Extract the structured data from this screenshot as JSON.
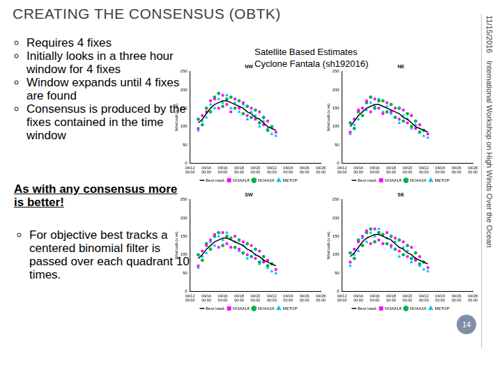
{
  "slide": {
    "title": "CREATING THE CONSENSUS (OBTK)",
    "date": "11/15/2016",
    "footer": "International Workshop on High Winds Over the Ocean",
    "page": 14,
    "bullets": [
      "Requires 4 fixes",
      "Initially looks in a three hour window for 4 fixes",
      "Window expands until 4 fixes are found",
      "Consensus is produced by the fixes contained in the time window"
    ],
    "emphasis": "As with any consensus more is better!",
    "note": "For objective best tracks a centered binomial filter is passed over each quadrant 10 times.",
    "chart_header": [
      "Satellite Based Estimates",
      "Cyclone Fantala (sh192016)"
    ]
  },
  "chart_data": [
    {
      "type": "scatter",
      "title": "NW",
      "ylabel": "Wind radii (n mi)",
      "categories": [
        "04/12 00:00",
        null,
        null,
        null,
        "04/14 00:00",
        null,
        null,
        null,
        "04/16 00:00",
        null,
        null,
        null,
        "04/18 00:00",
        null,
        null,
        null,
        "04/20 00:00",
        null,
        null,
        null,
        "04/22 00:00",
        null,
        null,
        null,
        "04/24 00:00",
        null,
        null,
        null,
        "04/26 00:00",
        null,
        null,
        null,
        "04/28 00:00"
      ],
      "ylim": [
        0,
        250
      ],
      "yticks": [
        0,
        50,
        100,
        150,
        200,
        250
      ],
      "grid": false,
      "legend": "bottom",
      "series": [
        {
          "name": "Best track",
          "color": "#000000",
          "type": "line",
          "line_style": "solid",
          "values": [
            null,
            null,
            110,
            120,
            135,
            150,
            160,
            165,
            170,
            170,
            165,
            160,
            155,
            150,
            140,
            135,
            125,
            120,
            110,
            100,
            95,
            90,
            null,
            null,
            null,
            null,
            null,
            null,
            null,
            null,
            null,
            null,
            null
          ]
        },
        {
          "name": "NOAA18",
          "color": "#ff00ff",
          "type": "scatter",
          "marker": "square",
          "values": [
            null,
            null,
            95,
            130,
            140,
            170,
            175,
            150,
            185,
            160,
            140,
            175,
            150,
            165,
            130,
            150,
            120,
            140,
            105,
            115,
            null,
            85,
            null,
            null,
            null,
            null,
            null,
            null,
            null,
            null,
            null,
            null,
            null
          ]
        },
        {
          "name": "NOAA19",
          "color": "#00b050",
          "type": "scatter",
          "marker": "circle",
          "values": [
            null,
            null,
            120,
            105,
            150,
            140,
            180,
            190,
            155,
            175,
            180,
            150,
            170,
            135,
            155,
            125,
            145,
            110,
            125,
            90,
            100,
            null,
            null,
            null,
            null,
            null,
            null,
            null,
            null,
            null,
            null,
            null,
            null
          ]
        },
        {
          "name": "METOP",
          "color": "#00bfff",
          "type": "scatter",
          "marker": "triangle",
          "values": [
            null,
            null,
            90,
            115,
            125,
            160,
            150,
            175,
            165,
            185,
            150,
            165,
            140,
            160,
            120,
            140,
            130,
            100,
            115,
            95,
            80,
            75,
            null,
            null,
            null,
            null,
            null,
            null,
            null,
            null,
            null,
            null,
            null
          ]
        }
      ]
    },
    {
      "type": "scatter",
      "title": "NE",
      "ylabel": "Wind radii (n mi)",
      "categories": [
        "04/12 00:00",
        null,
        null,
        null,
        "04/14 00:00",
        null,
        null,
        null,
        "04/16 00:00",
        null,
        null,
        null,
        "04/18 00:00",
        null,
        null,
        null,
        "04/20 00:00",
        null,
        null,
        null,
        "04/22 00:00",
        null,
        null,
        null,
        "04/24 00:00",
        null,
        null,
        null,
        "04/26 00:00",
        null,
        null,
        null,
        "04/28 00:00"
      ],
      "ylim": [
        0,
        250
      ],
      "yticks": [
        0,
        50,
        100,
        150,
        200,
        250
      ],
      "grid": false,
      "legend": "bottom",
      "series": [
        {
          "name": "Best track",
          "color": "#000000",
          "type": "line",
          "line_style": "solid",
          "values": [
            null,
            null,
            100,
            115,
            130,
            140,
            150,
            155,
            160,
            160,
            155,
            150,
            145,
            140,
            135,
            125,
            120,
            110,
            100,
            95,
            90,
            85,
            null,
            null,
            null,
            null,
            null,
            null,
            null,
            null,
            null,
            null,
            null
          ]
        },
        {
          "name": "NOAA18",
          "color": "#ff00ff",
          "type": "scatter",
          "marker": "square",
          "values": [
            null,
            null,
            85,
            120,
            145,
            150,
            170,
            140,
            175,
            150,
            135,
            165,
            140,
            150,
            120,
            145,
            110,
            130,
            95,
            105,
            null,
            80,
            null,
            null,
            null,
            null,
            null,
            null,
            null,
            null,
            null,
            null,
            null
          ]
        },
        {
          "name": "NOAA19",
          "color": "#00b050",
          "type": "scatter",
          "marker": "circle",
          "values": [
            null,
            null,
            110,
            95,
            140,
            130,
            165,
            180,
            150,
            170,
            170,
            140,
            160,
            125,
            150,
            115,
            135,
            100,
            115,
            85,
            90,
            null,
            null,
            null,
            null,
            null,
            null,
            null,
            null,
            null,
            null,
            null,
            null
          ]
        },
        {
          "name": "METOP",
          "color": "#00bfff",
          "type": "scatter",
          "marker": "triangle",
          "values": [
            null,
            null,
            80,
            105,
            120,
            150,
            145,
            165,
            155,
            175,
            140,
            155,
            135,
            150,
            110,
            130,
            120,
            95,
            105,
            85,
            75,
            70,
            null,
            null,
            null,
            null,
            null,
            null,
            null,
            null,
            null,
            null,
            null
          ]
        }
      ]
    },
    {
      "type": "scatter",
      "title": "SW",
      "ylabel": "Wind radii (n mi)",
      "categories": [
        "04/12 00:00",
        null,
        null,
        null,
        "04/14 00:00",
        null,
        null,
        null,
        "04/16 00:00",
        null,
        null,
        null,
        "04/18 00:00",
        null,
        null,
        null,
        "04/20 00:00",
        null,
        null,
        null,
        "04/22 00:00",
        null,
        null,
        null,
        "04/24 00:00",
        null,
        null,
        null,
        "04/26 00:00",
        null,
        null,
        null,
        "04/28 00:00"
      ],
      "ylim": [
        0,
        250
      ],
      "yticks": [
        0,
        50,
        100,
        150,
        200,
        250
      ],
      "grid": false,
      "legend": "bottom",
      "series": [
        {
          "name": "Best track",
          "color": "#000000",
          "type": "line",
          "line_style": "solid",
          "values": [
            null,
            null,
            90,
            100,
            115,
            125,
            135,
            140,
            145,
            145,
            140,
            135,
            130,
            125,
            115,
            110,
            100,
            95,
            85,
            80,
            75,
            70,
            null,
            null,
            null,
            null,
            null,
            null,
            null,
            null,
            null,
            null,
            null
          ]
        },
        {
          "name": "NOAA18",
          "color": "#ff00ff",
          "type": "scatter",
          "marker": "square",
          "values": [
            null,
            null,
            70,
            110,
            125,
            140,
            155,
            120,
            160,
            130,
            120,
            150,
            115,
            135,
            100,
            125,
            90,
            110,
            80,
            85,
            null,
            60,
            null,
            null,
            null,
            null,
            null,
            null,
            null,
            null,
            null,
            null,
            null
          ]
        },
        {
          "name": "NOAA19",
          "color": "#00b050",
          "type": "scatter",
          "marker": "circle",
          "values": [
            null,
            null,
            100,
            85,
            130,
            115,
            150,
            160,
            125,
            150,
            145,
            120,
            140,
            105,
            130,
            95,
            115,
            80,
            95,
            70,
            75,
            null,
            null,
            null,
            null,
            null,
            null,
            null,
            null,
            null,
            null,
            null,
            null
          ]
        },
        {
          "name": "METOP",
          "color": "#00bfff",
          "type": "scatter",
          "marker": "triangle",
          "values": [
            null,
            null,
            65,
            95,
            105,
            135,
            125,
            150,
            140,
            160,
            120,
            135,
            110,
            125,
            90,
            110,
            100,
            75,
            85,
            65,
            55,
            50,
            null,
            null,
            null,
            null,
            null,
            null,
            null,
            null,
            null,
            null,
            null
          ]
        }
      ]
    },
    {
      "type": "scatter",
      "title": "SE",
      "ylabel": "Wind radii (n mi)",
      "categories": [
        "04/12 00:00",
        null,
        null,
        null,
        "04/14 00:00",
        null,
        null,
        null,
        "04/16 00:00",
        null,
        null,
        null,
        "04/18 00:00",
        null,
        null,
        null,
        "04/20 00:00",
        null,
        null,
        null,
        "04/22 00:00",
        null,
        null,
        null,
        "04/24 00:00",
        null,
        null,
        null,
        "04/26 00:00",
        null,
        null,
        null,
        "04/28 00:00"
      ],
      "ylim": [
        0,
        250
      ],
      "yticks": [
        0,
        50,
        100,
        150,
        200,
        250
      ],
      "grid": false,
      "legend": "bottom",
      "series": [
        {
          "name": "Best track",
          "color": "#000000",
          "type": "line",
          "line_style": "solid",
          "values": [
            null,
            null,
            95,
            105,
            120,
            135,
            145,
            150,
            155,
            155,
            150,
            145,
            140,
            130,
            120,
            115,
            105,
            100,
            90,
            85,
            80,
            75,
            null,
            null,
            null,
            null,
            null,
            null,
            null,
            null,
            null,
            null,
            null
          ]
        },
        {
          "name": "NOAA18",
          "color": "#ff00ff",
          "type": "scatter",
          "marker": "square",
          "values": [
            null,
            null,
            80,
            115,
            135,
            150,
            165,
            130,
            170,
            140,
            130,
            160,
            125,
            145,
            110,
            135,
            95,
            120,
            85,
            95,
            null,
            65,
            null,
            null,
            null,
            null,
            null,
            null,
            null,
            null,
            null,
            null,
            null
          ]
        },
        {
          "name": "NOAA19",
          "color": "#00b050",
          "type": "scatter",
          "marker": "circle",
          "values": [
            null,
            null,
            105,
            90,
            140,
            125,
            160,
            170,
            135,
            160,
            155,
            130,
            150,
            115,
            140,
            100,
            125,
            90,
            105,
            75,
            80,
            null,
            null,
            null,
            null,
            null,
            null,
            null,
            null,
            null,
            null,
            null,
            null
          ]
        },
        {
          "name": "METOP",
          "color": "#00bfff",
          "type": "scatter",
          "marker": "triangle",
          "values": [
            null,
            null,
            70,
            100,
            110,
            145,
            135,
            160,
            150,
            170,
            130,
            145,
            120,
            135,
            95,
            120,
            110,
            80,
            90,
            70,
            60,
            55,
            null,
            null,
            null,
            null,
            null,
            null,
            null,
            null,
            null,
            null,
            null
          ]
        }
      ]
    }
  ]
}
